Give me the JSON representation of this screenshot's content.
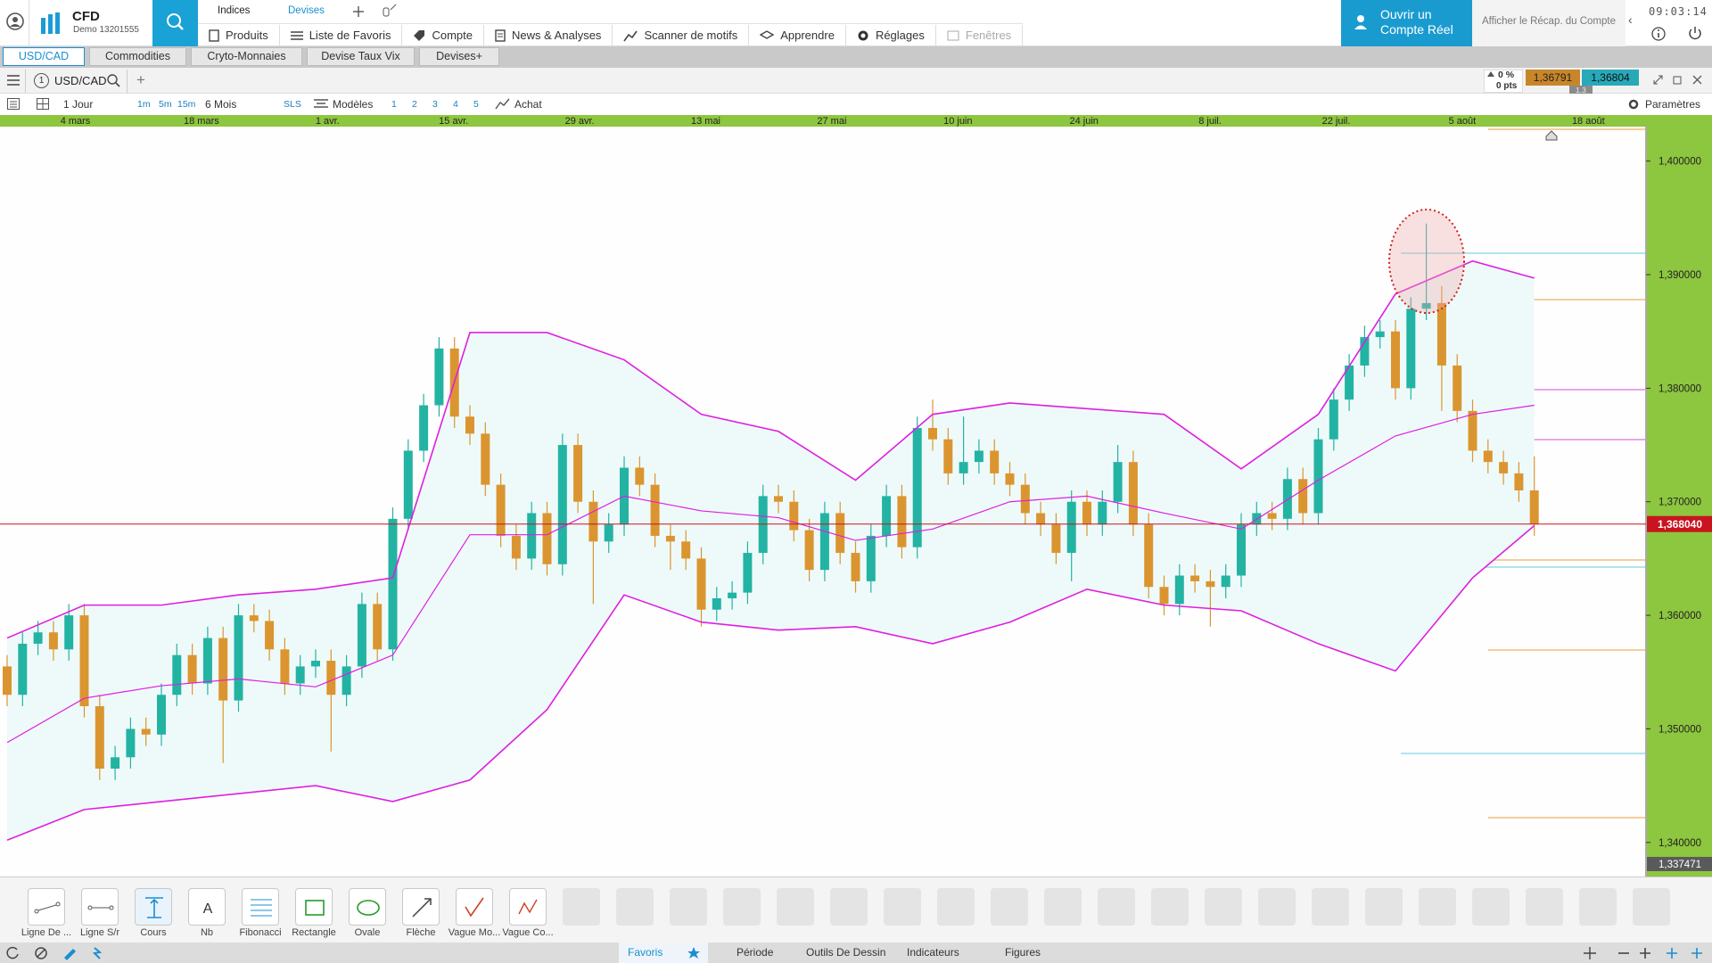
{
  "header": {
    "brand": "CFD",
    "account": "Demo 13201555",
    "top_tabs": [
      "Indices",
      "Devises"
    ],
    "nav": [
      "Produits",
      "Liste de Favoris",
      "Compte",
      "News & Analyses",
      "Scanner de motifs",
      "Apprendre",
      "Réglages",
      "Fenêtres"
    ],
    "cta": "Ouvrir un Compte Réel",
    "account_summary": "Afficher le Récap. du Compte",
    "clock": "09:03:14"
  },
  "tabs": [
    "USD/CAD",
    "Commodities",
    "Cryto-Monnaies",
    "Devise Taux Vix",
    "Devises+"
  ],
  "symbol_bar": {
    "window": "1",
    "symbol": "USD/CAD",
    "change_pct": "0 %",
    "change_pts": "0 pts",
    "bid": "1,36791",
    "ask": "1,36804",
    "spread": "1.3"
  },
  "toolbar": {
    "period": "1 Jour",
    "intervals": [
      "1m",
      "5m",
      "15m"
    ],
    "range": "6 Mois",
    "sls": "SLS",
    "models": "Modèles",
    "layouts": [
      "1",
      "2",
      "3",
      "4",
      "5"
    ],
    "order": "Achat",
    "settings": "Paramètres"
  },
  "chart_data": {
    "type": "candlestick",
    "dates": [
      "4 mars",
      "18 mars",
      "1 avr.",
      "15 avr.",
      "29 avr.",
      "13 mai",
      "27 mai",
      "10 juin",
      "24 juin",
      "8 juil.",
      "22 juil.",
      "5 août",
      "18 août"
    ],
    "up_color": "#23b3a3",
    "down_color": "#db9530",
    "open": [
      1.3555,
      1.353,
      1.3575,
      1.3585,
      1.357,
      1.36,
      1.352,
      1.3465,
      1.3475,
      1.35,
      1.3495,
      1.353,
      1.3565,
      1.354,
      1.358,
      1.3525,
      1.36,
      1.3595,
      1.357,
      1.354,
      1.3555,
      1.356,
      1.353,
      1.3555,
      1.361,
      1.357,
      1.3685,
      1.3745,
      1.3785,
      1.3835,
      1.3775,
      1.376,
      1.3715,
      1.367,
      1.365,
      1.369,
      1.3645,
      1.375,
      1.37,
      1.3665,
      1.368,
      1.373,
      1.3715,
      1.367,
      1.3665,
      1.365,
      1.3605,
      1.3615,
      1.362,
      1.3655,
      1.3705,
      1.37,
      1.3675,
      1.364,
      1.369,
      1.3655,
      1.363,
      1.367,
      1.3705,
      1.366,
      1.3765,
      1.3755,
      1.3725,
      1.3735,
      1.3745,
      1.3725,
      1.3715,
      1.369,
      1.368,
      1.3655,
      1.37,
      1.368,
      1.37,
      1.3735,
      1.368,
      1.3625,
      1.361,
      1.3635,
      1.363,
      1.3625,
      1.3635,
      1.368,
      1.369,
      1.3685,
      1.372,
      1.369,
      1.3755,
      1.379,
      1.382,
      1.3845,
      1.385,
      1.38,
      1.387,
      1.3875,
      1.382,
      1.378,
      1.3745,
      1.3735,
      1.3725,
      1.371
    ],
    "high": [
      1.3565,
      1.3585,
      1.3595,
      1.3595,
      1.361,
      1.361,
      1.353,
      1.3485,
      1.351,
      1.351,
      1.354,
      1.3575,
      1.3575,
      1.359,
      1.359,
      1.361,
      1.361,
      1.3605,
      1.358,
      1.3565,
      1.357,
      1.357,
      1.3565,
      1.362,
      1.362,
      1.3695,
      1.3755,
      1.3795,
      1.3845,
      1.3845,
      1.3785,
      1.377,
      1.3725,
      1.368,
      1.37,
      1.37,
      1.376,
      1.376,
      1.371,
      1.369,
      1.374,
      1.374,
      1.3725,
      1.368,
      1.3675,
      1.366,
      1.3625,
      1.363,
      1.3665,
      1.3715,
      1.3715,
      1.371,
      1.3685,
      1.37,
      1.37,
      1.3665,
      1.368,
      1.3715,
      1.3715,
      1.3775,
      1.379,
      1.3765,
      1.3775,
      1.3755,
      1.3755,
      1.3735,
      1.3725,
      1.37,
      1.369,
      1.371,
      1.371,
      1.371,
      1.375,
      1.3745,
      1.369,
      1.3635,
      1.3645,
      1.3645,
      1.364,
      1.3645,
      1.369,
      1.37,
      1.37,
      1.373,
      1.373,
      1.3765,
      1.38,
      1.383,
      1.3855,
      1.386,
      1.386,
      1.388,
      1.3945,
      1.389,
      1.383,
      1.379,
      1.3755,
      1.3745,
      1.3735,
      1.374
    ],
    "low": [
      1.352,
      1.352,
      1.3565,
      1.356,
      1.356,
      1.351,
      1.3455,
      1.3455,
      1.3465,
      1.3485,
      1.3485,
      1.352,
      1.353,
      1.353,
      1.347,
      1.3515,
      1.3585,
      1.356,
      1.353,
      1.353,
      1.3545,
      1.348,
      1.352,
      1.3545,
      1.356,
      1.356,
      1.3675,
      1.3735,
      1.3775,
      1.3765,
      1.375,
      1.3705,
      1.366,
      1.364,
      1.364,
      1.3635,
      1.3635,
      1.369,
      1.361,
      1.3655,
      1.367,
      1.3705,
      1.366,
      1.364,
      1.364,
      1.359,
      1.3595,
      1.3605,
      1.361,
      1.3645,
      1.369,
      1.3665,
      1.363,
      1.363,
      1.3645,
      1.362,
      1.362,
      1.366,
      1.365,
      1.365,
      1.3745,
      1.3715,
      1.3715,
      1.3725,
      1.3715,
      1.3705,
      1.368,
      1.367,
      1.3645,
      1.363,
      1.367,
      1.367,
      1.369,
      1.367,
      1.3615,
      1.36,
      1.36,
      1.362,
      1.359,
      1.3615,
      1.3625,
      1.367,
      1.3675,
      1.3675,
      1.368,
      1.368,
      1.3745,
      1.378,
      1.381,
      1.3835,
      1.379,
      1.379,
      1.386,
      1.378,
      1.377,
      1.3735,
      1.3725,
      1.3715,
      1.37,
      1.367
    ],
    "close": [
      1.353,
      1.3575,
      1.3585,
      1.357,
      1.36,
      1.352,
      1.3465,
      1.3475,
      1.35,
      1.3495,
      1.353,
      1.3565,
      1.354,
      1.358,
      1.3525,
      1.36,
      1.3595,
      1.357,
      1.354,
      1.3555,
      1.356,
      1.353,
      1.3555,
      1.361,
      1.357,
      1.3685,
      1.3745,
      1.3785,
      1.3835,
      1.3775,
      1.376,
      1.3715,
      1.367,
      1.365,
      1.369,
      1.3645,
      1.375,
      1.37,
      1.3665,
      1.368,
      1.373,
      1.3715,
      1.367,
      1.3665,
      1.365,
      1.3605,
      1.3615,
      1.362,
      1.3655,
      1.3705,
      1.37,
      1.3675,
      1.364,
      1.369,
      1.3655,
      1.363,
      1.367,
      1.3705,
      1.366,
      1.3765,
      1.3755,
      1.3725,
      1.3735,
      1.3745,
      1.3725,
      1.3715,
      1.369,
      1.368,
      1.3655,
      1.37,
      1.368,
      1.37,
      1.3735,
      1.368,
      1.3625,
      1.361,
      1.3635,
      1.363,
      1.3625,
      1.3635,
      1.368,
      1.369,
      1.3685,
      1.372,
      1.369,
      1.3755,
      1.379,
      1.382,
      1.3845,
      1.385,
      1.38,
      1.387,
      1.3875,
      1.382,
      1.378,
      1.3745,
      1.3735,
      1.3725,
      1.371,
      1.36804
    ],
    "bands": {
      "color": "#e01ee0",
      "fill": "#eefafa",
      "x": [
        0,
        5,
        10,
        15,
        20,
        25,
        30,
        35,
        40,
        45,
        50,
        55,
        60,
        65,
        70,
        75,
        80,
        85,
        90,
        95,
        99
      ],
      "upper": [
        1.358,
        1.3609,
        1.3609,
        1.3618,
        1.3623,
        1.3633,
        1.3849,
        1.3849,
        1.3825,
        1.3777,
        1.3762,
        1.3719,
        1.3777,
        1.3787,
        1.3782,
        1.3777,
        1.3729,
        1.3777,
        1.3883,
        1.3912,
        1.3897
      ],
      "middle": [
        1.3488,
        1.3527,
        1.3538,
        1.3544,
        1.3537,
        1.3565,
        1.3671,
        1.3671,
        1.3705,
        1.3692,
        1.3686,
        1.3666,
        1.3676,
        1.37,
        1.3705,
        1.369,
        1.3676,
        1.3719,
        1.3758,
        1.3777,
        1.3785
      ],
      "lower": [
        1.3402,
        1.3429,
        1.3436,
        1.3443,
        1.345,
        1.3436,
        1.3455,
        1.3517,
        1.3618,
        1.3594,
        1.3587,
        1.359,
        1.3575,
        1.3594,
        1.3623,
        1.3609,
        1.3604,
        1.3575,
        1.3551,
        1.3633,
        1.3679
      ]
    },
    "ylim": [
      1.337471,
      1.40288
    ],
    "yticks": [
      {
        "value": 1.4,
        "label": "1,400000"
      },
      {
        "value": 1.39,
        "label": "1,390000"
      },
      {
        "value": 1.38,
        "label": "1,380000"
      },
      {
        "value": 1.37,
        "label": "1,370000"
      },
      {
        "value": 1.36,
        "label": "1,360000"
      },
      {
        "value": 1.35,
        "label": "1,350000"
      },
      {
        "value": 1.34,
        "label": "1,340000"
      }
    ],
    "last_price": {
      "value": 1.36804,
      "label": "1,368040",
      "color": "#c8141e"
    },
    "axis_min": {
      "value": 1.337471,
      "label": "1,337471"
    }
  },
  "drawing_tools": [
    "Ligne De ...",
    "Ligne S/r",
    "Cours",
    "Nb",
    "Fibonacci",
    "Rectangle",
    "Ovale",
    "Flèche",
    "Vague Mo...",
    "Vague Co..."
  ],
  "bottom_tabs": [
    "Favoris",
    "Période",
    "Outils De Dessin",
    "Indicateurs",
    "Figures"
  ]
}
